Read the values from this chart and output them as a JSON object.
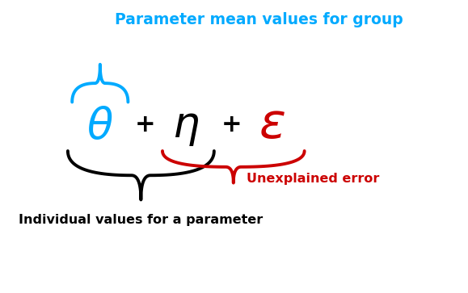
{
  "title_text": "Parameter mean values for group",
  "title_color": "#00AAFF",
  "title_fontsize": 13.5,
  "theta_color": "#00AAFF",
  "eta_color": "#000000",
  "epsilon_color": "#CC0000",
  "symbol_fontsize": 38,
  "plus_fontsize": 22,
  "blue_bracket_color": "#00AAFF",
  "black_bracket_color": "#000000",
  "red_bracket_color": "#CC0000",
  "label_individual": "Individual values for a parameter",
  "label_individual_color": "#000000",
  "label_individual_fontsize": 11.5,
  "label_unexplained": "Unexplained error",
  "label_unexplained_color": "#CC0000",
  "label_unexplained_fontsize": 11.5,
  "background_color": "#FFFFFF"
}
